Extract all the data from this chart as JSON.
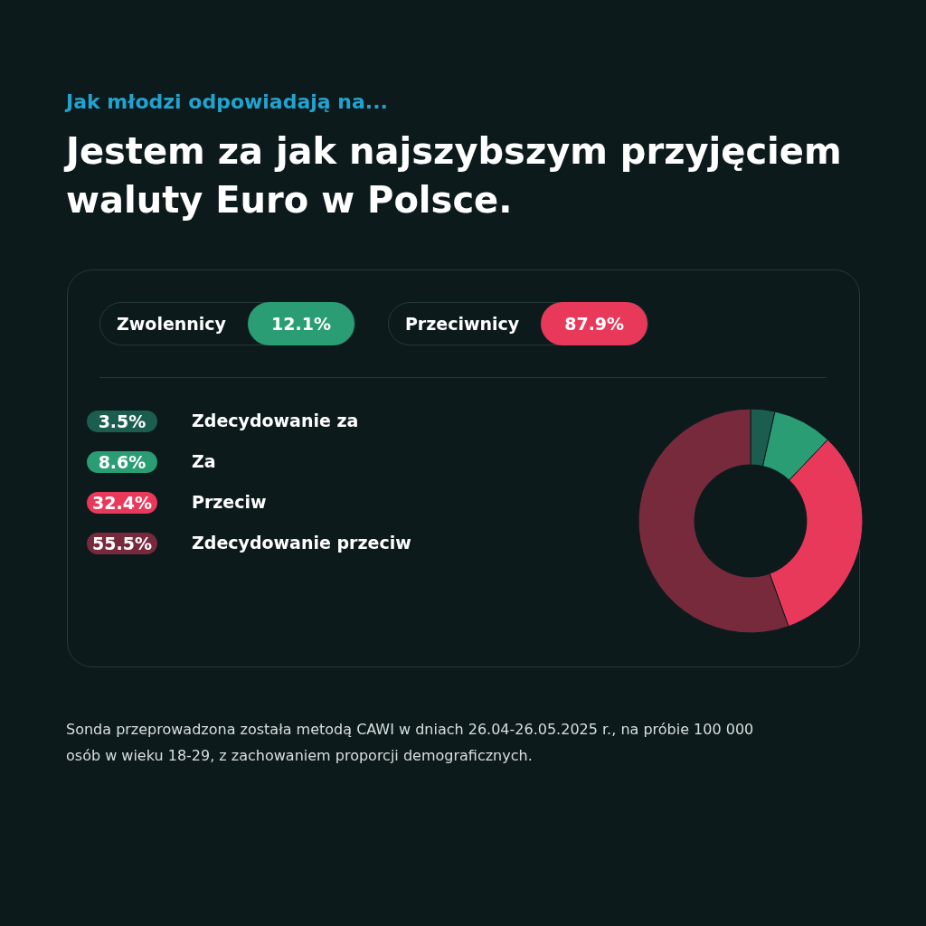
{
  "chart_data": {
    "type": "donut",
    "subtitle": "Jak młodzi odpowiadają na...",
    "title": "Jestem za jak najszybszym przyjęciem waluty Euro w Polsce.",
    "categories": [
      "Zdecydowanie za",
      "Za",
      "Przeciw",
      "Zdecydowanie przeciw"
    ],
    "values": [
      3.5,
      8.6,
      32.4,
      55.5
    ],
    "colors": [
      "#1b5e4f",
      "#2a9d74",
      "#e8395a",
      "#772a3c"
    ],
    "value_labels": [
      "3.5%",
      "8.6%",
      "32.4%",
      "55.5%"
    ],
    "legend": "left",
    "annotations": [
      "Zwolennicy",
      "12.1%",
      "Przeciwnicy",
      "87.9%",
      "Sonda przeprowadzona została metodą CAWI w dniach 26.04-26.05.2025 r., na próbie 100 000 osób w wieku 18-29, z zachowaniem proporcji demograficznych."
    ]
  }
}
